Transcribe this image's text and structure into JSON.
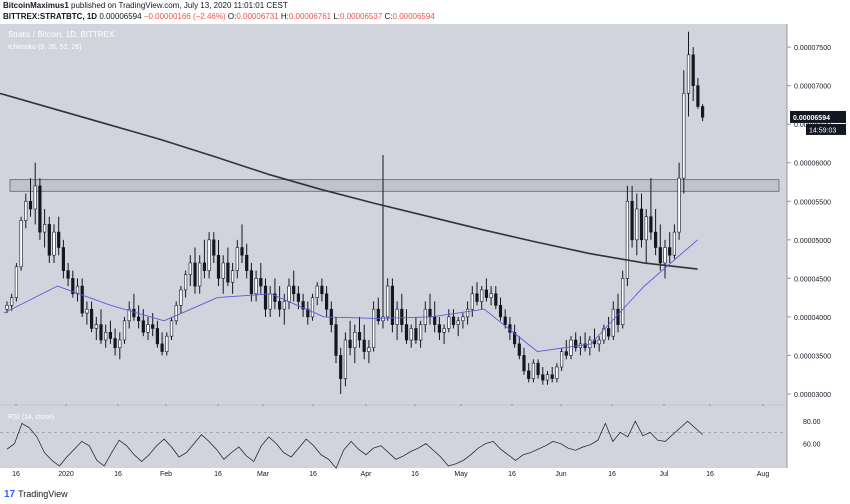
{
  "header": {
    "author": "BitcoinMaximus1",
    "published_text": "published on TradingView.com, July 13, 2020 11:01:01 CEST",
    "symbol": "BITTREX:STRATBTC, 1D",
    "o_label": "O:",
    "o_value": "0.00006731",
    "h_label": "H:",
    "h_value": "0.00006761",
    "l_label": "L:",
    "l_value": "0.00006537",
    "c_label": "C:",
    "c_value": "0.00006594",
    "last_value": "0.00006594",
    "change": "−0.00000166 (−2.46%)"
  },
  "footer": {
    "brand": "TradingView",
    "logo_glyph": "17"
  },
  "colors": {
    "background": "#d1d4dc",
    "up": "#131722",
    "down": "#131722",
    "sma_line": "#333333",
    "kijun_line": "#5b5bd6",
    "rsi_line": "#131722",
    "zone_fill": "rgba(120,123,134,0.18)",
    "zone_border": "#555555"
  },
  "chart_data": {
    "type": "candlestick",
    "title": "Stratis / Bitcoin, 1D, BITTREX",
    "indicator_label": "Ichimoku (9, 26, 52, 26)",
    "price_axis_ticks": [
      "0.00007500",
      "0.00007000",
      "0.00006500",
      "0.00006000",
      "0.00005500",
      "0.00005000",
      "0.00004500",
      "0.00004000",
      "0.00003500",
      "0.00003000"
    ],
    "ylim": [
      2.87e-05,
      7.8e-05
    ],
    "time_axis_ticks": [
      "16",
      "2020",
      "16",
      "Feb",
      "16",
      "Mar",
      "16",
      "Apr",
      "16",
      "May",
      "16",
      "Jun",
      "16",
      "Jul",
      "16",
      "Aug"
    ],
    "last_price_label": "0.00006594",
    "countdown_label": "14:59:03",
    "resistance_zone": [
      5.63e-05,
      5.78e-05
    ],
    "candles": [
      [
        4.1e-05,
        4.2e-05,
        4.05e-05,
        4.15e-05
      ],
      [
        4.15e-05,
        4.3e-05,
        4.08e-05,
        4.25e-05
      ],
      [
        4.25e-05,
        4.7e-05,
        4.2e-05,
        4.65e-05
      ],
      [
        4.65e-05,
        5.3e-05,
        4.6e-05,
        5.25e-05
      ],
      [
        5.25e-05,
        5.6e-05,
        5.15e-05,
        5.5e-05
      ],
      [
        5.5e-05,
        5.8e-05,
        5.3e-05,
        5.4e-05
      ],
      [
        5.4e-05,
        6e-05,
        5.2e-05,
        5.7e-05
      ],
      [
        5.7e-05,
        5.8e-05,
        5e-05,
        5.1e-05
      ],
      [
        5.1e-05,
        5.4e-05,
        4.9e-05,
        5.2e-05
      ],
      [
        5.2e-05,
        5.3e-05,
        4.7e-05,
        4.8e-05
      ],
      [
        4.8e-05,
        5.2e-05,
        4.7e-05,
        5.1e-05
      ],
      [
        5.1e-05,
        5.3e-05,
        4.8e-05,
        4.9e-05
      ],
      [
        4.9e-05,
        5e-05,
        4.5e-05,
        4.6e-05
      ],
      [
        4.6e-05,
        4.7e-05,
        4.4e-05,
        4.5e-05
      ],
      [
        4.5e-05,
        4.6e-05,
        4.25e-05,
        4.3e-05
      ],
      [
        4.3e-05,
        4.5e-05,
        4.2e-05,
        4.4e-05
      ],
      [
        4.4e-05,
        4.5e-05,
        4e-05,
        4.05e-05
      ],
      [
        4.05e-05,
        4.2e-05,
        3.9e-05,
        4.1e-05
      ],
      [
        4.1e-05,
        4.2e-05,
        3.8e-05,
        3.85e-05
      ],
      [
        3.85e-05,
        4e-05,
        3.7e-05,
        3.9e-05
      ],
      [
        3.9e-05,
        4.1e-05,
        3.65e-05,
        3.7e-05
      ],
      [
        3.7e-05,
        3.9e-05,
        3.6e-05,
        3.8e-05
      ],
      [
        3.8e-05,
        3.95e-05,
        3.65e-05,
        3.72e-05
      ],
      [
        3.72e-05,
        3.85e-05,
        3.5e-05,
        3.6e-05
      ],
      [
        3.6e-05,
        3.8e-05,
        3.45e-05,
        3.7e-05
      ],
      [
        3.7e-05,
        4e-05,
        3.65e-05,
        3.95e-05
      ],
      [
        3.95e-05,
        4.2e-05,
        3.85e-05,
        4.1e-05
      ],
      [
        4.1e-05,
        4.3e-05,
        3.95e-05,
        4e-05
      ],
      [
        4e-05,
        4.15e-05,
        3.85e-05,
        3.95e-05
      ],
      [
        3.95e-05,
        4.1e-05,
        3.75e-05,
        3.8e-05
      ],
      [
        3.8e-05,
        4e-05,
        3.7e-05,
        3.9e-05
      ],
      [
        3.9e-05,
        4.05e-05,
        3.75e-05,
        3.85e-05
      ],
      [
        3.85e-05,
        3.95e-05,
        3.6e-05,
        3.65e-05
      ],
      [
        3.65e-05,
        3.8e-05,
        3.5e-05,
        3.55e-05
      ],
      [
        3.55e-05,
        3.8e-05,
        3.5e-05,
        3.75e-05
      ],
      [
        3.75e-05,
        4e-05,
        3.7e-05,
        3.95e-05
      ],
      [
        3.95e-05,
        4.2e-05,
        3.9e-05,
        4.15e-05
      ],
      [
        4.15e-05,
        4.4e-05,
        4.05e-05,
        4.35e-05
      ],
      [
        4.35e-05,
        4.6e-05,
        4.25e-05,
        4.55e-05
      ],
      [
        4.55e-05,
        4.8e-05,
        4.4e-05,
        4.7e-05
      ],
      [
        4.7e-05,
        4.9e-05,
        4.3e-05,
        4.4e-05
      ],
      [
        4.4e-05,
        4.8e-05,
        4.3e-05,
        4.7e-05
      ],
      [
        4.7e-05,
        5e-05,
        4.5e-05,
        4.6e-05
      ],
      [
        4.6e-05,
        5.1e-05,
        4.5e-05,
        5e-05
      ],
      [
        5e-05,
        5.1e-05,
        4.7e-05,
        4.8e-05
      ],
      [
        4.8e-05,
        5e-05,
        4.4e-05,
        4.5e-05
      ],
      [
        4.5e-05,
        4.8e-05,
        4.3e-05,
        4.7e-05
      ],
      [
        4.7e-05,
        4.9e-05,
        4.4e-05,
        4.45e-05
      ],
      [
        4.45e-05,
        4.7e-05,
        4.3e-05,
        4.6e-05
      ],
      [
        4.6e-05,
        5e-05,
        4.5e-05,
        4.9e-05
      ],
      [
        4.9e-05,
        5.2e-05,
        4.7e-05,
        4.8e-05
      ],
      [
        4.8e-05,
        4.95e-05,
        4.5e-05,
        4.6e-05
      ],
      [
        4.6e-05,
        4.7e-05,
        4.2e-05,
        4.3e-05
      ],
      [
        4.3e-05,
        4.6e-05,
        4.2e-05,
        4.5e-05
      ],
      [
        4.5e-05,
        4.7e-05,
        4.3e-05,
        4.4e-05
      ],
      [
        4.4e-05,
        4.5e-05,
        4e-05,
        4.1e-05
      ],
      [
        4.1e-05,
        4.4e-05,
        4e-05,
        4.3e-05
      ],
      [
        4.3e-05,
        4.5e-05,
        4.1e-05,
        4.2e-05
      ],
      [
        4.2e-05,
        4.4e-05,
        4e-05,
        4.1e-05
      ],
      [
        4.1e-05,
        4.3e-05,
        3.9e-05,
        4.2e-05
      ],
      [
        4.2e-05,
        4.5e-05,
        4.1e-05,
        4.4e-05
      ],
      [
        4.4e-05,
        4.6e-05,
        4.2e-05,
        4.3e-05
      ],
      [
        4.3e-05,
        4.4e-05,
        4.1e-05,
        4.2e-05
      ],
      [
        4.2e-05,
        4.3e-05,
        4e-05,
        4.1e-05
      ],
      [
        4.1e-05,
        4.2e-05,
        3.9e-05,
        4e-05
      ],
      [
        4e-05,
        4.3e-05,
        3.95e-05,
        4.25e-05
      ],
      [
        4.25e-05,
        4.45e-05,
        4.15e-05,
        4.4e-05
      ],
      [
        4.4e-05,
        4.5e-05,
        4.2e-05,
        4.3e-05
      ],
      [
        4.3e-05,
        4.4e-05,
        4e-05,
        4.1e-05
      ],
      [
        4.1e-05,
        4.2e-05,
        3.8e-05,
        3.9e-05
      ],
      [
        3.9e-05,
        4e-05,
        3.4e-05,
        3.5e-05
      ],
      [
        3.5e-05,
        3.6e-05,
        3e-05,
        3.2e-05
      ],
      [
        3.2e-05,
        3.8e-05,
        3.1e-05,
        3.7e-05
      ],
      [
        3.7e-05,
        3.95e-05,
        3.5e-05,
        3.6e-05
      ],
      [
        3.6e-05,
        3.9e-05,
        3.4e-05,
        3.8e-05
      ],
      [
        3.8e-05,
        4e-05,
        3.6e-05,
        3.7e-05
      ],
      [
        3.7e-05,
        3.9e-05,
        3.45e-05,
        3.55e-05
      ],
      [
        3.55e-05,
        3.7e-05,
        3.4e-05,
        3.6e-05
      ],
      [
        3.6e-05,
        4.2e-05,
        3.55e-05,
        4.1e-05
      ],
      [
        4.1e-05,
        4.25e-05,
        3.9e-05,
        3.95e-05
      ],
      [
        3.95e-05,
        6.1e-05,
        3.85e-05,
        4e-05
      ],
      [
        4e-05,
        4.5e-05,
        3.95e-05,
        4.4e-05
      ],
      [
        4.4e-05,
        4.5e-05,
        3.8e-05,
        3.9e-05
      ],
      [
        3.9e-05,
        4.2e-05,
        3.7e-05,
        4.1e-05
      ],
      [
        4.1e-05,
        4.3e-05,
        3.8e-05,
        3.9e-05
      ],
      [
        3.9e-05,
        4.1e-05,
        3.65e-05,
        3.7e-05
      ],
      [
        3.7e-05,
        3.9e-05,
        3.6e-05,
        3.85e-05
      ],
      [
        3.85e-05,
        4e-05,
        3.65e-05,
        3.7e-05
      ],
      [
        3.7e-05,
        3.95e-05,
        3.6e-05,
        3.9e-05
      ],
      [
        3.9e-05,
        4.2e-05,
        3.8e-05,
        4.1e-05
      ],
      [
        4.1e-05,
        4.3e-05,
        3.9e-05,
        4e-05
      ],
      [
        4e-05,
        4.2e-05,
        3.8e-05,
        3.9e-05
      ],
      [
        3.9e-05,
        4e-05,
        3.7e-05,
        3.8e-05
      ],
      [
        3.8e-05,
        3.9e-05,
        3.65e-05,
        3.85e-05
      ],
      [
        3.85e-05,
        4.1e-05,
        3.8e-05,
        4e-05
      ],
      [
        4e-05,
        4.1e-05,
        3.85e-05,
        3.9e-05
      ],
      [
        3.9e-05,
        4e-05,
        3.75e-05,
        3.95e-05
      ],
      [
        3.95e-05,
        4.05e-05,
        3.85e-05,
        4e-05
      ],
      [
        4e-05,
        4.2e-05,
        3.9e-05,
        4.1e-05
      ],
      [
        4.1e-05,
        4.4e-05,
        4e-05,
        4.3e-05
      ],
      [
        4.3e-05,
        4.45e-05,
        4.15e-05,
        4.2e-05
      ],
      [
        4.2e-05,
        4.4e-05,
        4.1e-05,
        4.35e-05
      ],
      [
        4.35e-05,
        4.5e-05,
        4.2e-05,
        4.25e-05
      ],
      [
        4.25e-05,
        4.4e-05,
        4.15e-05,
        4.3e-05
      ],
      [
        4.3e-05,
        4.4e-05,
        4.1e-05,
        4.15e-05
      ],
      [
        4.15e-05,
        4.25e-05,
        3.95e-05,
        4e-05
      ],
      [
        4e-05,
        4.1e-05,
        3.85e-05,
        3.9e-05
      ],
      [
        3.9e-05,
        4e-05,
        3.7e-05,
        3.8e-05
      ],
      [
        3.8e-05,
        3.9e-05,
        3.6e-05,
        3.65e-05
      ],
      [
        3.65e-05,
        3.75e-05,
        3.45e-05,
        3.5e-05
      ],
      [
        3.5e-05,
        3.6e-05,
        3.25e-05,
        3.3e-05
      ],
      [
        3.3e-05,
        3.4e-05,
        3.15e-05,
        3.2e-05
      ],
      [
        3.2e-05,
        3.45e-05,
        3.15e-05,
        3.4e-05
      ],
      [
        3.4e-05,
        3.45e-05,
        3.2e-05,
        3.25e-05
      ],
      [
        3.25e-05,
        3.35e-05,
        3.12e-05,
        3.18e-05
      ],
      [
        3.18e-05,
        3.3e-05,
        3.12e-05,
        3.25e-05
      ],
      [
        3.25e-05,
        3.35e-05,
        3.15e-05,
        3.2e-05
      ],
      [
        3.2e-05,
        3.4e-05,
        3.15e-05,
        3.35e-05
      ],
      [
        3.35e-05,
        3.6e-05,
        3.3e-05,
        3.55e-05
      ],
      [
        3.55e-05,
        3.7e-05,
        3.45e-05,
        3.5e-05
      ],
      [
        3.5e-05,
        3.75e-05,
        3.45e-05,
        3.7e-05
      ],
      [
        3.7e-05,
        3.8e-05,
        3.55e-05,
        3.6e-05
      ],
      [
        3.6e-05,
        3.75e-05,
        3.5e-05,
        3.65e-05
      ],
      [
        3.65e-05,
        3.8e-05,
        3.55e-05,
        3.6e-05
      ],
      [
        3.6e-05,
        3.75e-05,
        3.5e-05,
        3.7e-05
      ],
      [
        3.7e-05,
        3.85e-05,
        3.6e-05,
        3.65e-05
      ],
      [
        3.65e-05,
        3.75e-05,
        3.55e-05,
        3.7e-05
      ],
      [
        3.7e-05,
        3.9e-05,
        3.65e-05,
        3.85e-05
      ],
      [
        3.85e-05,
        4e-05,
        3.7e-05,
        3.75e-05
      ],
      [
        3.75e-05,
        4.2e-05,
        3.7e-05,
        4.1e-05
      ],
      [
        4.1e-05,
        4.3e-05,
        3.8e-05,
        3.9e-05
      ],
      [
        3.9e-05,
        4.6e-05,
        3.85e-05,
        4.5e-05
      ],
      [
        4.5e-05,
        5.7e-05,
        4.4e-05,
        5.5e-05
      ],
      [
        5.5e-05,
        5.7e-05,
        4.9e-05,
        5e-05
      ],
      [
        5e-05,
        5.6e-05,
        4.8e-05,
        5.4e-05
      ],
      [
        5.4e-05,
        5.6e-05,
        4.9e-05,
        5e-05
      ],
      [
        5e-05,
        5.4e-05,
        4.7e-05,
        5.3e-05
      ],
      [
        5.3e-05,
        5.8e-05,
        5e-05,
        5.1e-05
      ],
      [
        5.1e-05,
        5.4e-05,
        4.8e-05,
        4.9e-05
      ],
      [
        4.9e-05,
        5.2e-05,
        4.6e-05,
        4.7e-05
      ],
      [
        4.7e-05,
        5e-05,
        4.5e-05,
        4.9e-05
      ],
      [
        4.9e-05,
        5.1e-05,
        4.7e-05,
        4.8e-05
      ],
      [
        4.8e-05,
        5.2e-05,
        4.75e-05,
        5.1e-05
      ],
      [
        5.1e-05,
        6e-05,
        5e-05,
        5.8e-05
      ],
      [
        5.8e-05,
        7.2e-05,
        5.6e-05,
        6.9e-05
      ],
      [
        6.9e-05,
        7.7e-05,
        6.6e-05,
        7.4e-05
      ],
      [
        7.4e-05,
        7.5e-05,
        6.8e-05,
        7e-05
      ],
      [
        7e-05,
        7.1e-05,
        6.7e-05,
        6.73e-05
      ],
      [
        6.73e-05,
        6.76e-05,
        6.54e-05,
        6.59e-05
      ]
    ],
    "sma_line": [
      6.9e-05,
      6.7e-05,
      6.5e-05,
      6.3e-05,
      6.08e-05,
      5.85e-05,
      5.65e-05,
      5.47e-05,
      5.3e-05,
      5.13e-05,
      4.97e-05,
      4.82e-05,
      4.7e-05,
      4.62e-05
    ],
    "kijun_line": [
      4.05e-05,
      4.4e-05,
      4.15e-05,
      3.95e-05,
      4.25e-05,
      4.3e-05,
      4e-05,
      3.98e-05,
      4e-05,
      4.1e-05,
      3.55e-05,
      3.65e-05,
      4.4e-05,
      5e-05
    ],
    "rsi": [
      55,
      60,
      78,
      74,
      66,
      52,
      45,
      40,
      48,
      55,
      62,
      58,
      45,
      40,
      52,
      63,
      58,
      50,
      44,
      50,
      58,
      64,
      57,
      48,
      52,
      60,
      68,
      62,
      55,
      46,
      52,
      57,
      49,
      44,
      58,
      66,
      60,
      52,
      48,
      56,
      64,
      58,
      50,
      46,
      38,
      54,
      62,
      55,
      50,
      56,
      58,
      52,
      46,
      49,
      53,
      56,
      60,
      54,
      48,
      40,
      42,
      45,
      50,
      56,
      60,
      62,
      55,
      50,
      45,
      50,
      52,
      55,
      58,
      62,
      60,
      56,
      54,
      57,
      59,
      63,
      78,
      62,
      70,
      66,
      80,
      67,
      70,
      63,
      62,
      68,
      74,
      80,
      74,
      68
    ],
    "rsi_label": "RSI (14, close)",
    "rsi_ticks": [
      "80.00",
      "60.00"
    ]
  }
}
